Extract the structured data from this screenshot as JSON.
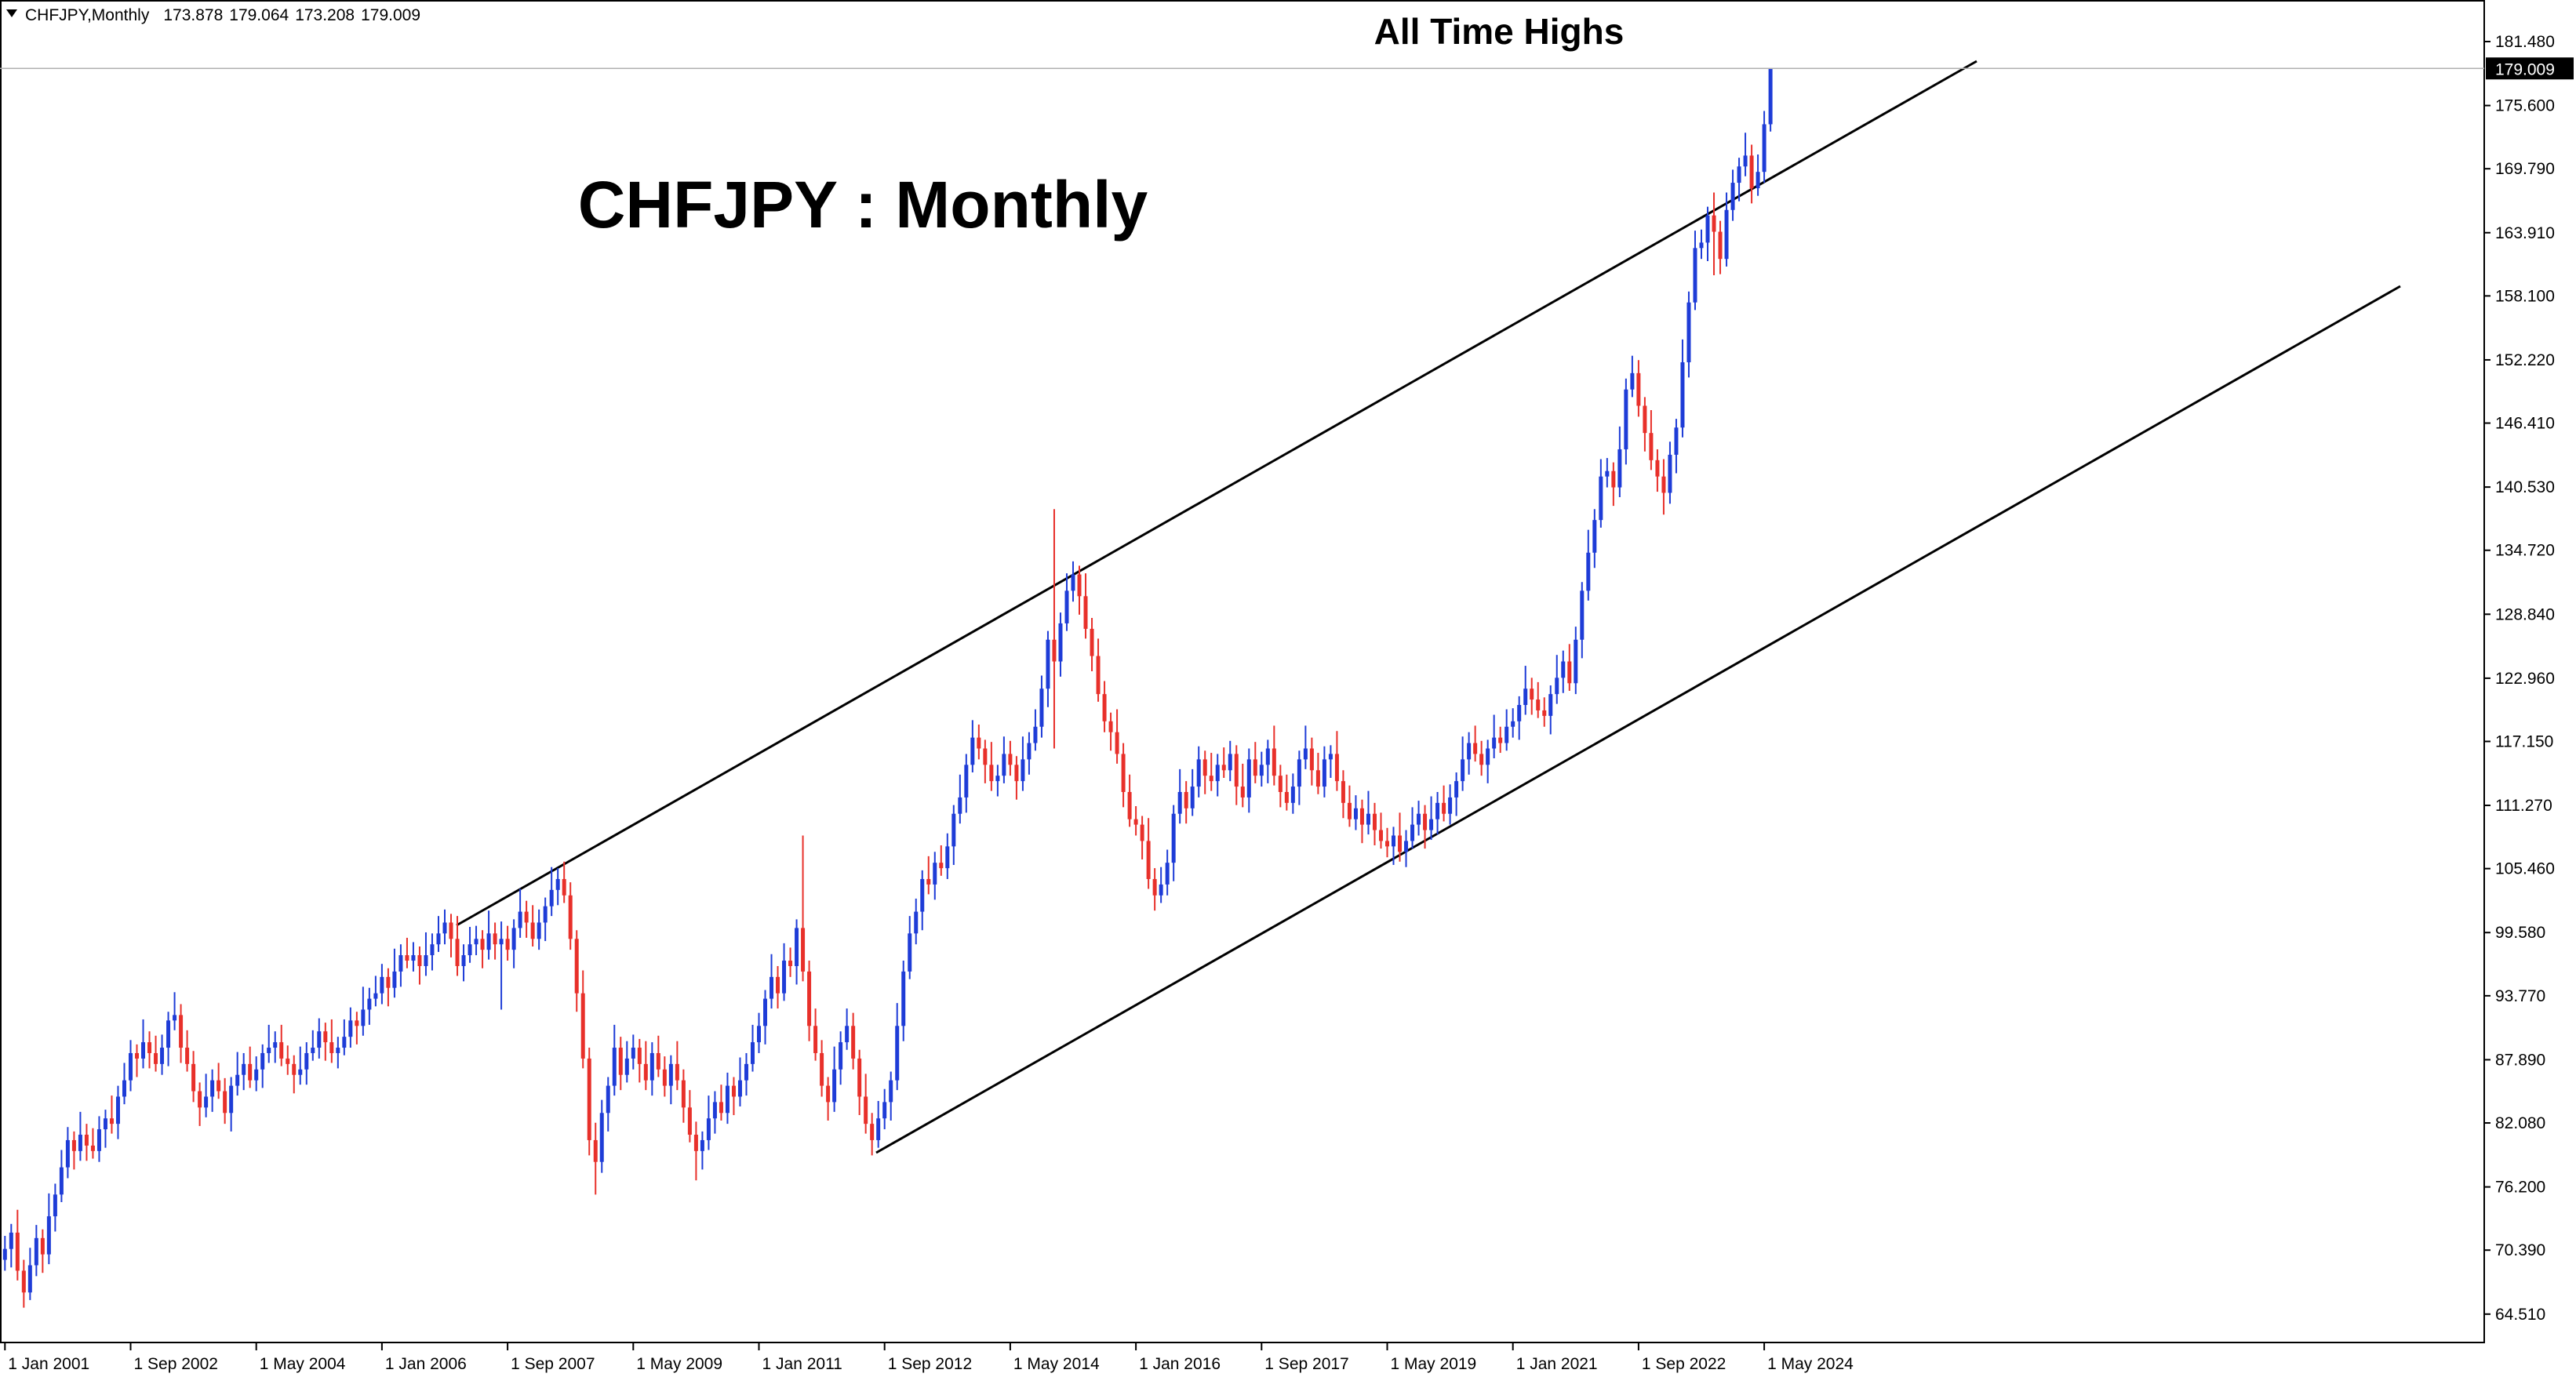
{
  "chart_data": {
    "type": "candlestick",
    "header": "CHFJPY,Monthly",
    "title": "CHFJPY : Monthly",
    "annotation": "All Time Highs",
    "up_color": "#1e3cd7",
    "down_color": "#e8302a",
    "ylim": [
      61.9,
      185.3
    ],
    "yticks": [
      {
        "value": 64.51,
        "label": "64.510"
      },
      {
        "value": 70.39,
        "label": "70.390"
      },
      {
        "value": 76.2,
        "label": "76.200"
      },
      {
        "value": 82.08,
        "label": "82.080"
      },
      {
        "value": 87.89,
        "label": "87.890"
      },
      {
        "value": 93.77,
        "label": "93.770"
      },
      {
        "value": 99.58,
        "label": "99.580"
      },
      {
        "value": 105.46,
        "label": "105.460"
      },
      {
        "value": 111.27,
        "label": "111.270"
      },
      {
        "value": 117.15,
        "label": "117.150"
      },
      {
        "value": 122.96,
        "label": "122.960"
      },
      {
        "value": 128.84,
        "label": "128.840"
      },
      {
        "value": 134.72,
        "label": "134.720"
      },
      {
        "value": 140.53,
        "label": "140.530"
      },
      {
        "value": 146.41,
        "label": "146.410"
      },
      {
        "value": 152.22,
        "label": "152.220"
      },
      {
        "value": 158.1,
        "label": "158.100"
      },
      {
        "value": 163.91,
        "label": "163.910"
      },
      {
        "value": 169.79,
        "label": "169.790"
      },
      {
        "value": 175.6,
        "label": "175.600"
      },
      {
        "value": 181.48,
        "label": "181.480"
      }
    ],
    "categories": [
      "1 Jan 2001",
      null,
      null,
      null,
      null,
      null,
      null,
      null,
      null,
      null,
      null,
      null,
      null,
      null,
      null,
      null,
      null,
      null,
      null,
      null,
      "1 Sep 2002",
      null,
      null,
      null,
      null,
      null,
      null,
      null,
      null,
      null,
      null,
      null,
      null,
      null,
      null,
      null,
      null,
      null,
      null,
      null,
      "1 May 2004",
      null,
      null,
      null,
      null,
      null,
      null,
      null,
      null,
      null,
      null,
      null,
      null,
      null,
      null,
      null,
      null,
      null,
      null,
      null,
      "1 Jan 2006",
      null,
      null,
      null,
      null,
      null,
      null,
      null,
      null,
      null,
      null,
      null,
      null,
      null,
      null,
      null,
      null,
      null,
      null,
      null,
      "1 Sep 2007",
      null,
      null,
      null,
      null,
      null,
      null,
      null,
      null,
      null,
      null,
      null,
      null,
      null,
      null,
      null,
      null,
      null,
      null,
      null,
      "1 May 2009",
      null,
      null,
      null,
      null,
      null,
      null,
      null,
      null,
      null,
      null,
      null,
      null,
      null,
      null,
      null,
      null,
      null,
      null,
      null,
      "1 Jan 2011",
      null,
      null,
      null,
      null,
      null,
      null,
      null,
      null,
      null,
      null,
      null,
      null,
      null,
      null,
      null,
      null,
      null,
      null,
      null,
      "1 Sep 2012",
      null,
      null,
      null,
      null,
      null,
      null,
      null,
      null,
      null,
      null,
      null,
      null,
      null,
      null,
      null,
      null,
      null,
      null,
      null,
      "1 May 2014",
      null,
      null,
      null,
      null,
      null,
      null,
      null,
      null,
      null,
      null,
      null,
      null,
      null,
      null,
      null,
      null,
      null,
      null,
      null,
      "1 Jan 2016",
      null,
      null,
      null,
      null,
      null,
      null,
      null,
      null,
      null,
      null,
      null,
      null,
      null,
      null,
      null,
      null,
      null,
      null,
      null,
      "1 Sep 2017",
      null,
      null,
      null,
      null,
      null,
      null,
      null,
      null,
      null,
      null,
      null,
      null,
      null,
      null,
      null,
      null,
      null,
      null,
      null,
      "1 May 2019",
      null,
      null,
      null,
      null,
      null,
      null,
      null,
      null,
      null,
      null,
      null,
      null,
      null,
      null,
      null,
      null,
      null,
      null,
      null,
      "1 Jan 2021",
      null,
      null,
      null,
      null,
      null,
      null,
      null,
      null,
      null,
      null,
      null,
      null,
      null,
      null,
      null,
      null,
      null,
      null,
      null,
      "1 Sep 2022",
      null,
      null,
      null,
      null,
      null,
      null,
      null,
      null,
      null,
      null,
      null,
      null,
      null,
      null,
      null,
      null,
      null,
      null,
      null,
      "1 May 2024",
      null
    ],
    "open": [
      69.5,
      70.5,
      72.0,
      68.5,
      66.5,
      69.0,
      71.5,
      70.0,
      73.5,
      75.5,
      78.0,
      80.5,
      79.5,
      81.0,
      80.0,
      79.5,
      81.5,
      82.5,
      82.0,
      84.5,
      86.0,
      88.5,
      88.0,
      89.5,
      88.5,
      87.5,
      89.0,
      91.5,
      92.0,
      89.0,
      87.5,
      85.0,
      83.5,
      84.5,
      86.0,
      85.0,
      83.0,
      85.5,
      86.5,
      87.5,
      86.0,
      87.0,
      88.5,
      89.0,
      89.5,
      88.0,
      87.5,
      86.5,
      87.0,
      88.5,
      89.0,
      90.5,
      89.5,
      88.5,
      89.0,
      90.0,
      91.5,
      91.0,
      92.5,
      93.5,
      94.0,
      95.5,
      94.5,
      96.0,
      97.5,
      97.0,
      97.5,
      96.5,
      97.5,
      98.5,
      99.5,
      100.5,
      99.0,
      96.5,
      97.5,
      98.5,
      99.0,
      98.0,
      99.5,
      98.5,
      99.0,
      98.0,
      100.0,
      101.5,
      100.5,
      99.0,
      100.5,
      102.0,
      103.5,
      104.5,
      103.0,
      99.0,
      94.0,
      88.0,
      80.5,
      78.5,
      83.0,
      85.5,
      89.0,
      86.5,
      88.0,
      89.0,
      87.5,
      86.0,
      88.5,
      87.0,
      85.5,
      87.5,
      86.0,
      83.5,
      81.0,
      79.5,
      80.5,
      82.5,
      84.0,
      83.0,
      85.5,
      84.5,
      86.0,
      87.5,
      89.5,
      91.0,
      93.5,
      95.5,
      94.0,
      97.0,
      96.5,
      100.0,
      96.0,
      91.0,
      88.5,
      85.5,
      84.0,
      87.0,
      89.5,
      91.0,
      88.0,
      84.5,
      82.0,
      80.5,
      82.5,
      84.0,
      86.0,
      91.0,
      96.0,
      99.5,
      101.5,
      104.5,
      104.0,
      106.0,
      105.5,
      107.5,
      110.5,
      112.0,
      115.0,
      117.5,
      116.5,
      115.0,
      113.5,
      114.0,
      116.0,
      115.0,
      113.5,
      115.5,
      117.0,
      118.5,
      122.0,
      126.5,
      124.5,
      128.0,
      131.0,
      132.5,
      130.5,
      127.5,
      125.0,
      121.5,
      119.0,
      118.0,
      116.0,
      112.5,
      110.0,
      109.5,
      108.0,
      104.5,
      103.0,
      104.0,
      106.0,
      110.5,
      112.5,
      111.0,
      113.0,
      115.5,
      114.0,
      113.5,
      115.0,
      114.5,
      116.0,
      113.0,
      112.0,
      115.5,
      114.0,
      115.0,
      116.5,
      114.0,
      112.5,
      111.5,
      113.0,
      115.5,
      116.5,
      114.5,
      113.0,
      115.5,
      116.0,
      113.5,
      111.5,
      110.0,
      111.0,
      109.5,
      110.5,
      109.0,
      108.0,
      107.5,
      108.5,
      107.0,
      108.0,
      109.5,
      110.5,
      109.0,
      110.0,
      111.5,
      110.5,
      112.0,
      113.5,
      115.5,
      117.0,
      116.0,
      115.0,
      116.5,
      117.5,
      117.0,
      118.5,
      119.0,
      120.5,
      122.0,
      121.0,
      120.0,
      119.5,
      121.5,
      123.0,
      124.5,
      122.5,
      126.5,
      131.0,
      134.5,
      137.5,
      141.5,
      142.0,
      140.5,
      144.0,
      149.5,
      151.0,
      148.0,
      145.5,
      143.0,
      141.5,
      140.0,
      143.5,
      146.0,
      152.0,
      157.5,
      162.5,
      163.0,
      165.5,
      164.0,
      161.5,
      166.0,
      168.5,
      170.0,
      171.0,
      168.0,
      169.5,
      173.878
    ],
    "high": [
      71.7,
      72.8,
      74.1,
      69.5,
      70.6,
      72.7,
      72.3,
      75.6,
      76.5,
      79.6,
      81.7,
      81.3,
      83.1,
      82.0,
      81.6,
      82.7,
      83.3,
      84.6,
      85.5,
      87.6,
      89.7,
      89.3,
      91.6,
      90.5,
      90.1,
      90.2,
      92.3,
      94.1,
      93.0,
      90.6,
      88.7,
      85.8,
      86.6,
      87.0,
      87.6,
      86.2,
      86.3,
      88.6,
      88.5,
      89.1,
      88.2,
      89.3,
      91.1,
      90.5,
      91.1,
      89.2,
      88.3,
      89.1,
      89.5,
      90.6,
      91.7,
      91.3,
      91.6,
      90.0,
      91.6,
      92.7,
      92.3,
      94.6,
      94.5,
      95.6,
      96.7,
      96.3,
      98.1,
      98.5,
      99.1,
      98.7,
      98.3,
      99.6,
      99.5,
      101.1,
      101.7,
      101.3,
      101.1,
      98.5,
      100.1,
      100.2,
      99.8,
      101.6,
      100.5,
      100.6,
      100.2,
      100.8,
      103.6,
      102.5,
      102.1,
      101.7,
      102.8,
      105.6,
      105.5,
      106.1,
      104.2,
      99.8,
      96.1,
      89.0,
      82.1,
      84.2,
      86.3,
      91.1,
      90.0,
      89.6,
      90.2,
      89.8,
      89.6,
      89.5,
      90.1,
      88.2,
      88.3,
      89.6,
      87.0,
      85.1,
      82.2,
      81.3,
      84.6,
      85.0,
      85.6,
      86.7,
      86.3,
      88.1,
      88.5,
      91.1,
      92.2,
      94.3,
      97.6,
      96.5,
      98.6,
      98.2,
      100.8,
      108.5,
      97.0,
      92.6,
      89.7,
      86.3,
      89.1,
      90.5,
      92.6,
      92.2,
      88.8,
      86.6,
      83.0,
      84.1,
      85.2,
      86.8,
      93.1,
      97.0,
      101.1,
      102.7,
      105.3,
      106.6,
      107.0,
      107.6,
      108.7,
      111.3,
      114.1,
      116.0,
      119.1,
      118.7,
      117.3,
      117.1,
      115.0,
      117.6,
      117.2,
      115.8,
      117.6,
      118.0,
      120.1,
      123.2,
      127.3,
      138.5,
      129.0,
      132.6,
      133.7,
      133.3,
      132.6,
      128.5,
      126.6,
      122.7,
      119.8,
      120.1,
      117.0,
      114.1,
      111.2,
      110.3,
      110.1,
      105.5,
      105.6,
      107.2,
      111.3,
      114.6,
      113.5,
      114.6,
      116.7,
      116.3,
      116.1,
      116.0,
      116.6,
      117.2,
      116.8,
      115.1,
      116.5,
      117.1,
      116.2,
      117.3,
      118.6,
      115.0,
      114.1,
      114.2,
      116.3,
      118.6,
      117.5,
      116.1,
      116.7,
      116.8,
      118.1,
      114.5,
      113.1,
      112.2,
      111.8,
      112.6,
      111.5,
      110.6,
      109.2,
      109.3,
      110.6,
      109.0,
      111.1,
      111.7,
      111.3,
      112.1,
      112.5,
      113.1,
      113.2,
      114.3,
      117.6,
      118.0,
      118.6,
      117.2,
      117.3,
      119.6,
      118.5,
      120.1,
      120.2,
      121.3,
      124.1,
      123.0,
      122.6,
      121.2,
      122.3,
      125.1,
      125.5,
      126.1,
      127.7,
      131.8,
      136.6,
      138.5,
      143.1,
      143.2,
      142.8,
      146.1,
      150.5,
      152.6,
      152.2,
      148.8,
      147.6,
      144.0,
      143.1,
      144.7,
      146.8,
      154.1,
      158.5,
      164.1,
      164.2,
      166.3,
      167.6,
      165.0,
      167.6,
      169.7,
      170.8,
      173.1,
      172.0,
      171.1,
      175.1,
      179.064
    ],
    "low": [
      68.5,
      68.8,
      67.6,
      65.1,
      65.8,
      68.0,
      68.3,
      69.1,
      72.1,
      74.8,
      77.0,
      77.8,
      78.6,
      78.6,
      78.8,
      78.5,
      79.8,
      81.1,
      80.6,
      83.8,
      85.0,
      86.3,
      87.1,
      87.1,
      86.8,
      86.5,
      87.3,
      90.6,
      87.6,
      86.8,
      84.0,
      81.8,
      82.6,
      83.1,
      84.3,
      82.0,
      81.3,
      84.6,
      85.1,
      85.3,
      85.0,
      85.3,
      87.6,
      87.6,
      87.3,
      86.5,
      84.8,
      85.6,
      85.6,
      87.8,
      88.0,
      87.8,
      87.6,
      87.1,
      88.3,
      89.0,
      89.3,
      90.1,
      91.1,
      92.8,
      93.0,
      92.8,
      93.6,
      94.6,
      96.3,
      96.0,
      94.8,
      95.6,
      96.1,
      97.8,
      98.5,
      97.3,
      95.6,
      95.1,
      96.8,
      97.5,
      96.3,
      97.1,
      97.1,
      92.5,
      97.0,
      96.3,
      99.1,
      99.1,
      98.3,
      98.0,
      98.8,
      101.1,
      102.1,
      102.3,
      98.0,
      92.3,
      87.1,
      79.1,
      75.5,
      77.5,
      81.3,
      84.6,
      85.1,
      85.8,
      87.0,
      85.8,
      85.1,
      84.6,
      86.3,
      84.5,
      83.8,
      85.1,
      82.1,
      80.3,
      76.8,
      77.8,
      79.6,
      81.1,
      82.3,
      82.0,
      82.8,
      83.6,
      84.6,
      86.8,
      88.5,
      89.3,
      92.6,
      92.6,
      93.3,
      95.5,
      94.8,
      95.1,
      89.6,
      87.8,
      84.5,
      82.3,
      83.1,
      85.6,
      88.8,
      87.0,
      82.8,
      81.1,
      79.1,
      79.8,
      81.5,
      82.3,
      85.1,
      89.6,
      95.3,
      98.5,
      99.8,
      103.1,
      102.6,
      104.8,
      104.5,
      105.8,
      109.6,
      110.6,
      114.3,
      115.5,
      113.3,
      112.6,
      112.1,
      113.3,
      114.0,
      111.8,
      112.6,
      114.1,
      116.3,
      117.5,
      120.3,
      116.5,
      123.1,
      127.3,
      130.0,
      128.8,
      126.6,
      123.6,
      120.8,
      118.0,
      116.3,
      115.1,
      111.1,
      109.3,
      108.5,
      106.3,
      103.6,
      101.6,
      102.3,
      103.0,
      104.3,
      109.6,
      109.6,
      110.3,
      112.0,
      112.3,
      112.6,
      112.1,
      113.8,
      113.5,
      111.3,
      111.1,
      110.6,
      113.3,
      113.0,
      113.3,
      113.1,
      111.1,
      110.8,
      110.5,
      111.3,
      114.6,
      113.1,
      112.3,
      112.0,
      113.8,
      112.6,
      110.1,
      109.3,
      109.0,
      107.8,
      108.6,
      107.6,
      107.3,
      106.5,
      105.8,
      106.1,
      105.6,
      107.3,
      108.5,
      107.3,
      108.1,
      108.6,
      109.8,
      109.5,
      110.3,
      112.6,
      114.1,
      115.3,
      114.0,
      113.3,
      115.6,
      116.1,
      116.3,
      117.5,
      117.3,
      119.6,
      119.6,
      119.3,
      118.5,
      117.8,
      120.6,
      121.6,
      121.8,
      121.5,
      124.8,
      130.1,
      133.1,
      136.8,
      140.5,
      138.8,
      139.6,
      142.6,
      148.8,
      147.0,
      143.8,
      142.1,
      140.1,
      138.0,
      139.0,
      141.8,
      145.1,
      150.6,
      156.8,
      161.5,
      161.3,
      160.0,
      160.1,
      160.8,
      165.0,
      166.8,
      169.1,
      166.6,
      167.3,
      168.5,
      173.208
    ],
    "close": [
      70.5,
      72.0,
      68.5,
      66.5,
      69.0,
      71.5,
      70.0,
      73.5,
      75.5,
      78.0,
      80.5,
      79.5,
      81.0,
      80.0,
      79.5,
      81.5,
      82.5,
      82.0,
      84.5,
      86.0,
      88.5,
      88.0,
      89.5,
      88.5,
      87.5,
      89.0,
      91.5,
      92.0,
      89.0,
      87.5,
      85.0,
      83.5,
      84.5,
      86.0,
      85.0,
      83.0,
      85.5,
      86.5,
      87.5,
      86.0,
      87.0,
      88.5,
      89.0,
      89.5,
      88.0,
      87.5,
      86.5,
      87.0,
      88.5,
      89.0,
      90.5,
      89.5,
      88.5,
      89.0,
      90.0,
      91.5,
      91.0,
      92.5,
      93.5,
      94.0,
      95.5,
      94.5,
      96.0,
      97.5,
      97.0,
      97.5,
      96.5,
      97.5,
      98.5,
      99.5,
      100.5,
      99.0,
      96.5,
      97.5,
      98.5,
      99.0,
      98.0,
      99.5,
      98.5,
      99.0,
      98.0,
      100.0,
      101.5,
      100.5,
      99.0,
      100.5,
      102.0,
      103.5,
      104.5,
      103.0,
      99.0,
      94.0,
      88.0,
      80.5,
      78.5,
      83.0,
      85.5,
      89.0,
      86.5,
      88.0,
      89.0,
      87.5,
      86.0,
      88.5,
      87.0,
      85.5,
      87.5,
      86.0,
      83.5,
      81.0,
      79.5,
      80.5,
      82.5,
      84.0,
      83.0,
      85.5,
      84.5,
      86.0,
      87.5,
      89.5,
      91.0,
      93.5,
      95.5,
      94.0,
      97.0,
      96.5,
      100.0,
      96.0,
      91.0,
      88.5,
      85.5,
      84.0,
      87.0,
      89.5,
      91.0,
      88.0,
      84.5,
      82.0,
      80.5,
      82.5,
      84.0,
      86.0,
      91.0,
      96.0,
      99.5,
      101.5,
      104.5,
      104.0,
      106.0,
      105.5,
      107.5,
      110.5,
      112.0,
      115.0,
      117.5,
      116.5,
      115.0,
      113.5,
      114.0,
      116.0,
      115.0,
      113.5,
      115.5,
      117.0,
      118.5,
      122.0,
      126.5,
      124.5,
      128.0,
      131.0,
      132.5,
      130.5,
      127.5,
      125.0,
      121.5,
      119.0,
      118.0,
      116.0,
      112.5,
      110.0,
      109.5,
      108.0,
      104.5,
      103.0,
      104.0,
      106.0,
      110.5,
      112.5,
      111.0,
      113.0,
      115.5,
      114.0,
      113.5,
      115.0,
      114.5,
      116.0,
      113.0,
      112.0,
      115.5,
      114.0,
      115.0,
      116.5,
      114.0,
      112.5,
      111.5,
      113.0,
      115.5,
      116.5,
      114.5,
      113.0,
      115.5,
      116.0,
      113.5,
      111.5,
      110.0,
      111.0,
      109.5,
      110.5,
      109.0,
      108.0,
      107.5,
      108.5,
      107.0,
      108.0,
      109.5,
      110.5,
      109.0,
      110.0,
      111.5,
      110.5,
      112.0,
      113.5,
      115.5,
      117.0,
      116.0,
      115.0,
      116.5,
      117.5,
      117.0,
      118.5,
      119.0,
      120.5,
      122.0,
      121.0,
      120.0,
      119.5,
      121.5,
      123.0,
      124.5,
      122.5,
      126.5,
      131.0,
      134.5,
      137.5,
      141.5,
      142.0,
      140.5,
      144.0,
      149.5,
      151.0,
      148.0,
      145.5,
      143.0,
      141.5,
      140.0,
      143.5,
      146.0,
      152.0,
      157.5,
      162.5,
      163.0,
      165.5,
      164.0,
      161.5,
      166.0,
      168.5,
      170.0,
      171.0,
      168.0,
      169.5,
      173.878,
      179.009
    ]
  }
}
